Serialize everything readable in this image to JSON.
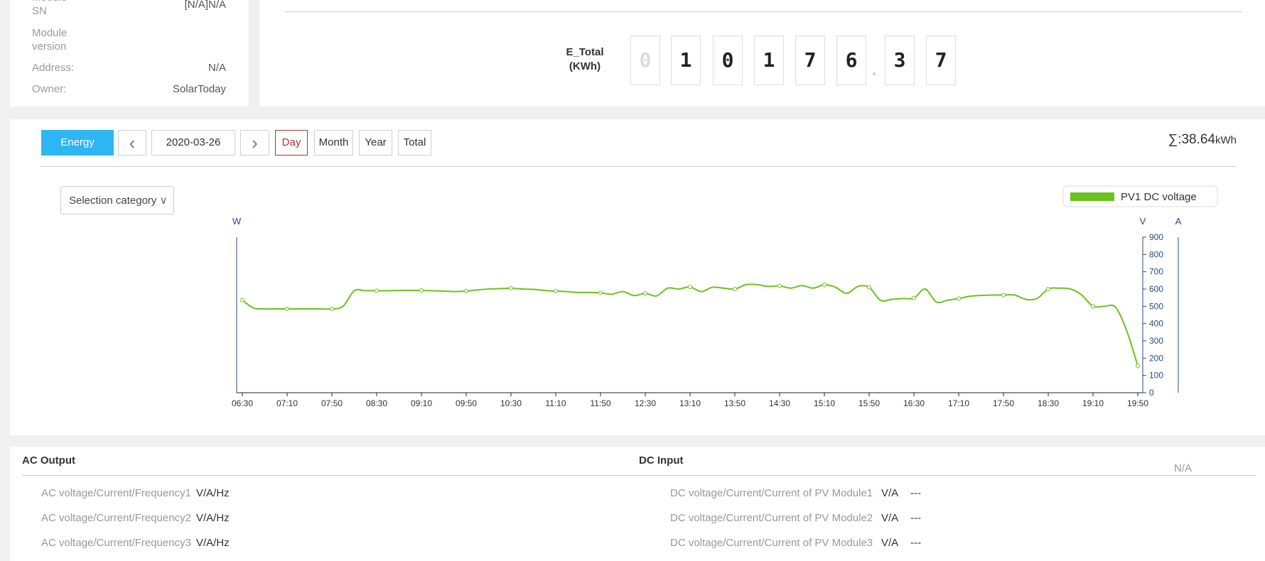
{
  "info": {
    "rows": [
      {
        "label": "Module SN",
        "value": "[N/A]N/A"
      },
      {
        "label": "Module version"
      },
      {
        "label": "Address:",
        "value": "N/A"
      },
      {
        "label": "Owner:",
        "value": "SolarToday"
      }
    ]
  },
  "e_total": {
    "label": "E_Total",
    "unit": "(KWh)",
    "digits": [
      "0",
      "1",
      "0",
      "1",
      "7",
      "6",
      "3",
      "7"
    ]
  },
  "toolbar": {
    "tab": "Energy",
    "date": "2020-03-26",
    "periods": [
      "Day",
      "Month",
      "Year",
      "Total"
    ],
    "total_prefix": "∑:",
    "total_value": 38.64,
    "total_unit": "kWh"
  },
  "selection": "Selection category",
  "chart_data": {
    "type": "line",
    "left_axis_label": "W",
    "ylabel": "V",
    "y2label": "A",
    "categories": [
      "06:30",
      null,
      null,
      null,
      "07:10",
      null,
      null,
      null,
      "07:50",
      null,
      null,
      null,
      "08:30",
      null,
      null,
      null,
      "09:10",
      null,
      null,
      null,
      "09:50",
      null,
      null,
      null,
      "10:30",
      null,
      null,
      null,
      "11:10",
      null,
      null,
      null,
      "11:50",
      null,
      null,
      null,
      "12:30",
      null,
      null,
      null,
      "13:10",
      null,
      null,
      null,
      "13:50",
      null,
      null,
      null,
      "14:30",
      null,
      null,
      null,
      "15:10",
      null,
      null,
      null,
      "15:50",
      null,
      null,
      null,
      "16:30",
      null,
      null,
      null,
      "17:10",
      null,
      null,
      null,
      "17:50",
      null,
      null,
      null,
      "18:30",
      null,
      null,
      null,
      "19:10",
      null,
      null,
      null,
      "19:50"
    ],
    "series": [
      {
        "name": "PV1 DC voltage",
        "color": "#6cc21e",
        "values": [
          536,
          490,
          485,
          485,
          485,
          485,
          485,
          485,
          485,
          500,
          590,
          590,
          590,
          590,
          592,
          592,
          592,
          590,
          588,
          585,
          588,
          595,
          600,
          602,
          604,
          600,
          598,
          592,
          588,
          585,
          580,
          580,
          578,
          570,
          585,
          562,
          575,
          560,
          605,
          600,
          612,
          585,
          610,
          605,
          600,
          625,
          625,
          615,
          618,
          605,
          620,
          605,
          625,
          610,
          575,
          615,
          610,
          535,
          540,
          545,
          548,
          600,
          525,
          535,
          545,
          558,
          563,
          565,
          565,
          565,
          540,
          545,
          600,
          605,
          600,
          565,
          500,
          500,
          495,
          360,
          155
        ]
      }
    ],
    "ylim": [
      0,
      900
    ],
    "yticks": [
      0,
      100,
      200,
      300,
      400,
      500,
      600,
      700,
      800,
      900
    ]
  },
  "ac": {
    "title": "AC Output",
    "rows": [
      {
        "label": "AC voltage/Current/Frequency1",
        "unit": "V/A/Hz"
      },
      {
        "label": "AC voltage/Current/Frequency2",
        "unit": "V/A/Hz"
      },
      {
        "label": "AC voltage/Current/Frequency3",
        "unit": "V/A/Hz"
      }
    ]
  },
  "dc": {
    "title": "DC Input",
    "note": "N/A",
    "rows": [
      {
        "label": "DC voltage/Current/Current of PV Module1",
        "unit": "V/A",
        "value": "---"
      },
      {
        "label": "DC voltage/Current/Current of PV Module2",
        "unit": "V/A",
        "value": "---"
      },
      {
        "label": "DC voltage/Current/Current of PV Module3",
        "unit": "V/A",
        "value": "---"
      }
    ]
  }
}
